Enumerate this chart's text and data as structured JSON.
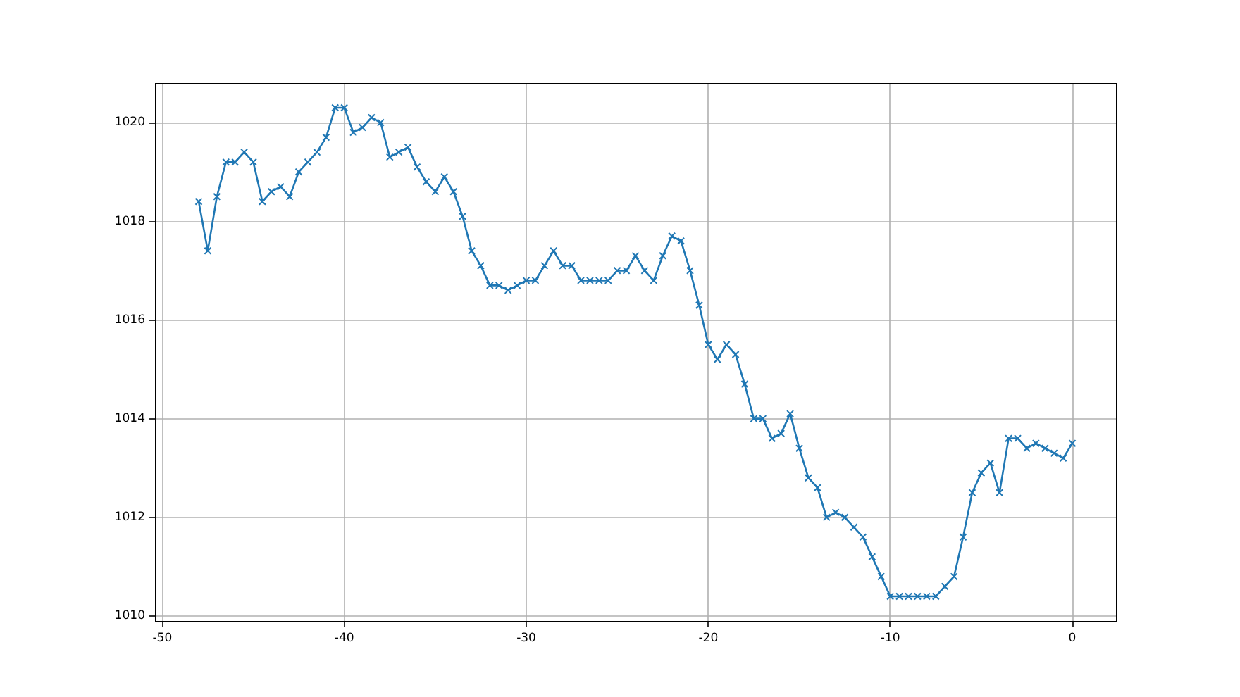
{
  "chart_data": {
    "type": "line",
    "color": "#1f77b4",
    "marker": "cross",
    "line_style": "solid",
    "grid": true,
    "x": [
      -48,
      -47.5,
      -47,
      -46.5,
      -46,
      -45.5,
      -45,
      -44.5,
      -44,
      -43.5,
      -43,
      -42.5,
      -42,
      -41.5,
      -41,
      -40.5,
      -40,
      -39.5,
      -39,
      -38.5,
      -38,
      -37.5,
      -37,
      -36.5,
      -36,
      -35.5,
      -35,
      -34.5,
      -34,
      -33.5,
      -33,
      -32.5,
      -32,
      -31.5,
      -31,
      -30.5,
      -30,
      -29.5,
      -29,
      -28.5,
      -28,
      -27.5,
      -27,
      -26.5,
      -26,
      -25.5,
      -25,
      -24.5,
      -24,
      -23.5,
      -23,
      -22.5,
      -22,
      -21.5,
      -21,
      -20.5,
      -20,
      -19.5,
      -19,
      -18.5,
      -18,
      -17.5,
      -17,
      -16.5,
      -16,
      -15.5,
      -15,
      -14.5,
      -14,
      -13.5,
      -13,
      -12.5,
      -12,
      -11.5,
      -11,
      -10.5,
      -10,
      -9.5,
      -9,
      -8.5,
      -8,
      -7.5,
      -7,
      -6.5,
      -6,
      -5.5,
      -5,
      -4.5,
      -4,
      -3.5,
      -3,
      -2.5,
      -2,
      -1.5,
      -1,
      -0.5,
      0
    ],
    "values": [
      1018.4,
      1017.4,
      1018.5,
      1019.2,
      1019.2,
      1019.4,
      1019.2,
      1018.4,
      1018.6,
      1018.7,
      1018.5,
      1019.0,
      1019.2,
      1019.4,
      1019.7,
      1020.3,
      1020.3,
      1019.8,
      1019.9,
      1020.1,
      1020.0,
      1019.3,
      1019.4,
      1019.5,
      1019.1,
      1018.8,
      1018.6,
      1018.9,
      1018.6,
      1018.1,
      1017.4,
      1017.1,
      1016.7,
      1016.7,
      1016.6,
      1016.7,
      1016.8,
      1016.8,
      1017.1,
      1017.4,
      1017.1,
      1017.1,
      1016.8,
      1016.8,
      1016.8,
      1016.8,
      1017.0,
      1017.0,
      1017.3,
      1017.0,
      1016.8,
      1017.3,
      1017.7,
      1017.6,
      1017.0,
      1016.3,
      1015.5,
      1015.2,
      1015.5,
      1015.3,
      1014.7,
      1014.0,
      1014.0,
      1013.6,
      1013.7,
      1014.1,
      1013.4,
      1012.8,
      1012.6,
      1012.0,
      1012.1,
      1012.0,
      1011.8,
      1011.6,
      1011.2,
      1010.8,
      1010.4,
      1010.4,
      1010.4,
      1010.4,
      1010.4,
      1010.4,
      1010.6,
      1010.8,
      1011.6,
      1012.5,
      1012.9,
      1013.1,
      1012.5,
      1013.6,
      1013.6,
      1013.4,
      1013.5,
      1013.4,
      1013.3,
      1013.2,
      1013.5
    ],
    "xlim": [
      -50.4,
      2.4
    ],
    "ylim": [
      1009.9,
      1020.8
    ],
    "xticks": [
      -50,
      -40,
      -30,
      -20,
      -10,
      0
    ],
    "yticks": [
      1010,
      1012,
      1014,
      1016,
      1018,
      1020
    ]
  }
}
